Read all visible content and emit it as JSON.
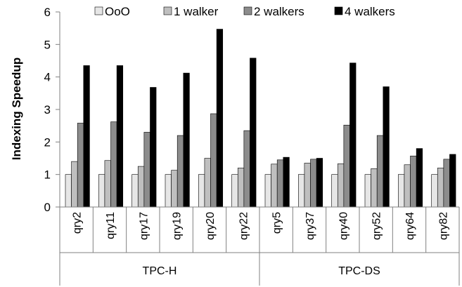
{
  "chart_data": {
    "type": "bar",
    "title": "",
    "xlabel": "",
    "ylabel": "Indexing Speedup",
    "ylim": [
      0,
      6
    ],
    "yticks": [
      0,
      1,
      2,
      3,
      4,
      5,
      6
    ],
    "grid": false,
    "legend_position": "top",
    "categories": [
      "qry2",
      "qry11",
      "qry17",
      "qry19",
      "qry20",
      "qry22",
      "qry5",
      "qry37",
      "qry40",
      "qry52",
      "qry64",
      "qry82"
    ],
    "groups": [
      {
        "label": "TPC-H",
        "categories": [
          "qry2",
          "qry11",
          "qry17",
          "qry19",
          "qry20",
          "qry22"
        ]
      },
      {
        "label": "TPC-DS",
        "categories": [
          "qry5",
          "qry37",
          "qry40",
          "qry52",
          "qry64",
          "qry82"
        ]
      }
    ],
    "series": [
      {
        "name": "OoO",
        "color": "#e6e6e6",
        "values": [
          1,
          1,
          1,
          1,
          1,
          1,
          1,
          1,
          1,
          1,
          1,
          1
        ]
      },
      {
        "name": "1 walker",
        "color": "#bfbfbf",
        "values": [
          1.4,
          1.43,
          1.25,
          1.13,
          1.5,
          1.2,
          1.32,
          1.35,
          1.33,
          1.18,
          1.3,
          1.2
        ]
      },
      {
        "name": "2 walkers",
        "color": "#8c8c8c",
        "values": [
          2.58,
          2.62,
          2.3,
          2.2,
          2.87,
          2.35,
          1.45,
          1.47,
          2.52,
          2.2,
          1.57,
          1.47
        ]
      },
      {
        "name": "4 walkers",
        "color": "#000000",
        "values": [
          4.35,
          4.35,
          3.68,
          4.12,
          5.47,
          4.58,
          1.53,
          1.5,
          4.43,
          3.7,
          1.8,
          1.62
        ]
      }
    ]
  }
}
